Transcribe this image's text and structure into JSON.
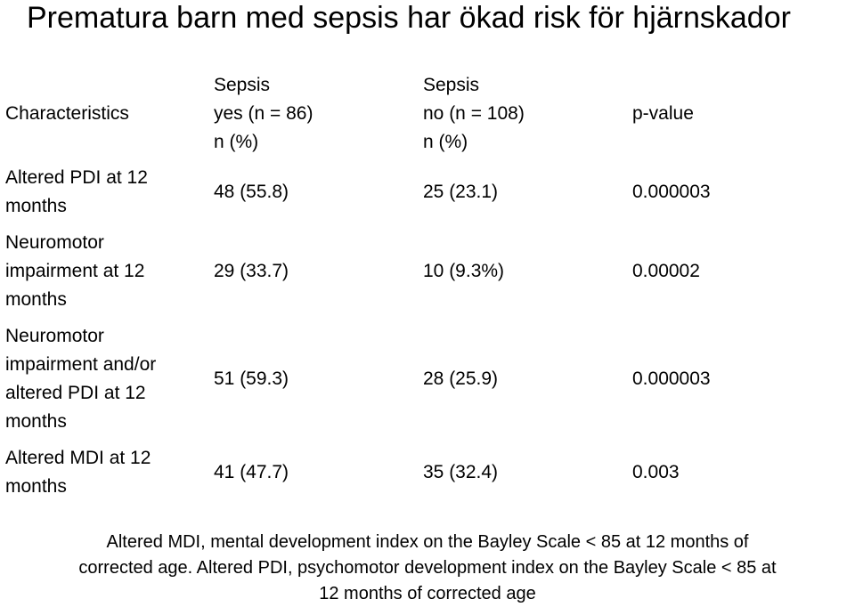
{
  "slide": {
    "title": "Prematura barn med sepsis har ökad risk för hjärnskador"
  },
  "table": {
    "headers": {
      "characteristics": "Characteristics",
      "sepsis_yes": [
        "Sepsis",
        "yes (n = 86)",
        "n (%)"
      ],
      "sepsis_no": [
        "Sepsis",
        "no (n = 108)",
        "n (%)"
      ],
      "p_value": "p-value"
    },
    "rows": [
      {
        "label": [
          "Altered PDI at 12",
          "months"
        ],
        "sepsis_yes": "48 (55.8)",
        "sepsis_no": "25 (23.1)",
        "p_value": "0.000003"
      },
      {
        "label": [
          "Neuromotor",
          "impairment at 12",
          "months"
        ],
        "sepsis_yes": "29 (33.7)",
        "sepsis_no": "10 (9.3%)",
        "p_value": "0.00002"
      },
      {
        "label": [
          "Neuromotor",
          "impairment and/or",
          "altered PDI at 12",
          "months"
        ],
        "sepsis_yes": "51 (59.3)",
        "sepsis_no": "28 (25.9)",
        "p_value": "0.000003"
      },
      {
        "label": [
          "Altered MDI at 12",
          "months"
        ],
        "sepsis_yes": "41 (47.7)",
        "sepsis_no": "35 (32.4)",
        "p_value": "0.003"
      }
    ]
  },
  "footnote": {
    "lines": [
      "Altered MDI, mental development index on the Bayley Scale < 85 at 12 months of",
      "corrected age. Altered PDI, psychomotor development index on the Bayley Scale < 85 at",
      "12 months of corrected age"
    ]
  }
}
